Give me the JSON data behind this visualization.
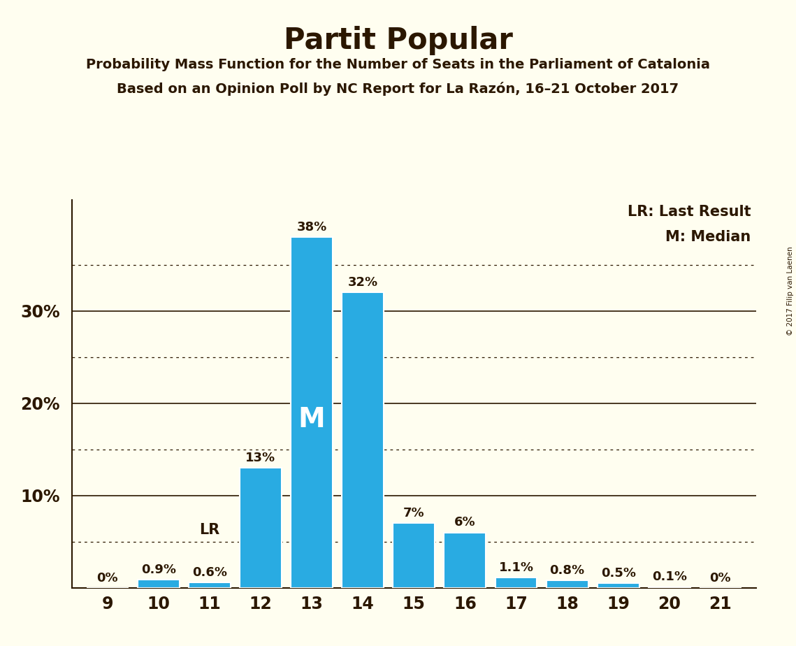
{
  "title": "Partit Popular",
  "subtitle1": "Probability Mass Function for the Number of Seats in the Parliament of Catalonia",
  "subtitle2": "Based on an Opinion Poll by NC Report for La Razón, 16–21 October 2017",
  "copyright": "© 2017 Filip van Laenen",
  "seats": [
    9,
    10,
    11,
    12,
    13,
    14,
    15,
    16,
    17,
    18,
    19,
    20,
    21
  ],
  "probabilities": [
    0.0,
    0.9,
    0.6,
    13.0,
    38.0,
    32.0,
    7.0,
    6.0,
    1.1,
    0.8,
    0.5,
    0.1,
    0.0
  ],
  "bar_color": "#29ABE2",
  "background_color": "#FFFEF0",
  "text_color": "#2B1700",
  "median_seat": 13,
  "last_result_seat": 11,
  "legend_lr": "LR: Last Result",
  "legend_m": "M: Median",
  "dotted_yticks": [
    5,
    15,
    25,
    35
  ],
  "solid_yticks": [
    10,
    20,
    30
  ],
  "ylim": [
    0,
    42
  ]
}
